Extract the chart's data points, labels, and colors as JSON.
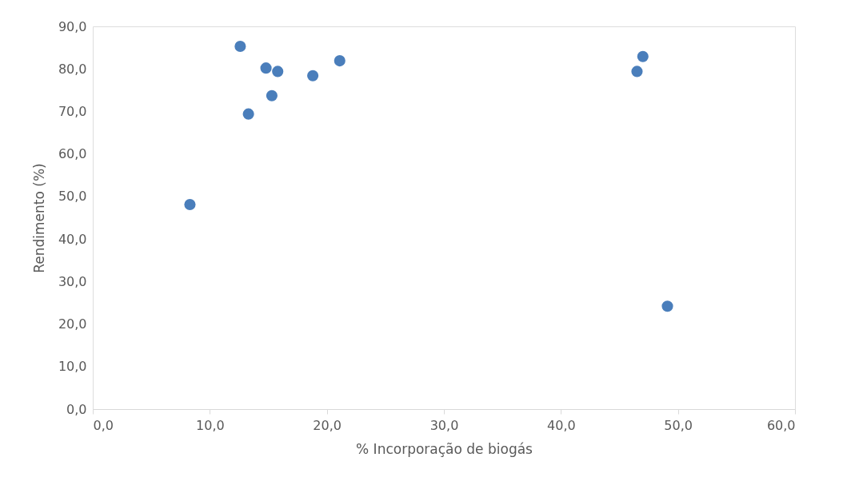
{
  "chart_data": {
    "type": "scatter",
    "xlabel": "% Incorporação de biogás",
    "ylabel": "Rendimento (%)",
    "x": [
      8.3,
      12.6,
      13.3,
      14.8,
      15.3,
      15.8,
      18.8,
      21.1,
      46.5,
      47.0,
      49.1
    ],
    "series": [
      {
        "color": "#4a7ebb",
        "values": [
          48.1,
          85.3,
          69.4,
          80.2,
          73.7,
          79.4,
          78.4,
          81.9,
          79.4,
          82.9,
          24.2
        ]
      }
    ],
    "xlim": [
      0,
      60
    ],
    "ylim": [
      0,
      90
    ],
    "xticks": [
      {
        "value": 0,
        "label": "0,0"
      },
      {
        "value": 10,
        "label": "10,0"
      },
      {
        "value": 20,
        "label": "20,0"
      },
      {
        "value": 30,
        "label": "30,0"
      },
      {
        "value": 40,
        "label": "40,0"
      },
      {
        "value": 50,
        "label": "50,0"
      },
      {
        "value": 60,
        "label": "60,0"
      }
    ],
    "yticks": [
      {
        "value": 0,
        "label": "0,0"
      },
      {
        "value": 10,
        "label": "10,0"
      },
      {
        "value": 20,
        "label": "20,0"
      },
      {
        "value": 30,
        "label": "30,0"
      },
      {
        "value": 40,
        "label": "40,0"
      },
      {
        "value": 50,
        "label": "50,0"
      },
      {
        "value": 60,
        "label": "60,0"
      },
      {
        "value": 70,
        "label": "70,0"
      },
      {
        "value": 80,
        "label": "80,0"
      },
      {
        "value": 90,
        "label": "90,0"
      }
    ],
    "grid": false,
    "legend": false,
    "marker": "circle"
  }
}
